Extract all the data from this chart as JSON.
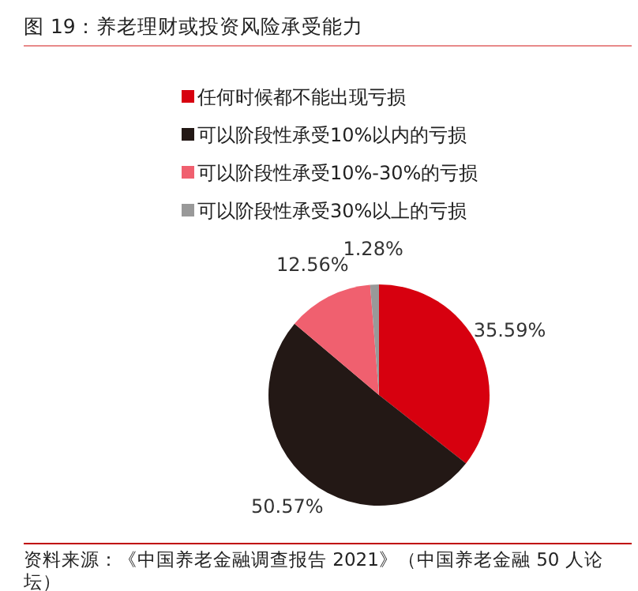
{
  "chart_data": {
    "type": "pie",
    "title": "图 19：养老理财或投资风险承受能力",
    "categories": [
      "任何时候都不能出现亏损",
      "可以阶段性承受10%以内的亏损",
      "可以阶段性承受10%-30%的亏损",
      "可以阶段性承受30%以上的亏损"
    ],
    "values": [
      35.59,
      50.57,
      12.56,
      1.28
    ],
    "colors": [
      "#d7000f",
      "#231815",
      "#f0606f",
      "#999999"
    ],
    "value_labels": [
      "35.59%",
      "50.57%",
      "12.56%",
      "1.28%"
    ],
    "legend": "top",
    "annotations": [
      "资料来源：《中国养老金融调查报告 2021》（中国养老金融 50 人论坛）"
    ]
  }
}
